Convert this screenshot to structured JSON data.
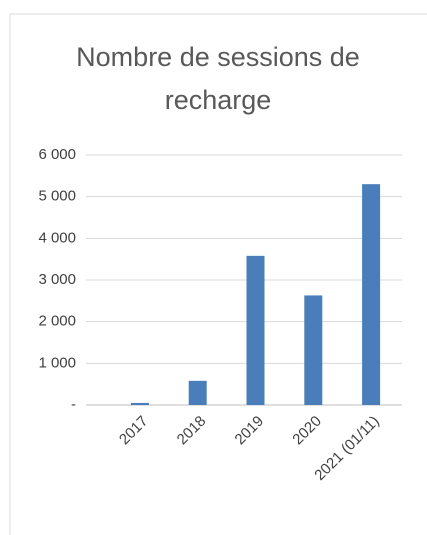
{
  "chart_data": {
    "type": "bar",
    "title": "Nombre de sessions de recharge",
    "categories": [
      "2017",
      "2018",
      "2019",
      "2020",
      "2021 (01/11)"
    ],
    "values": [
      50,
      580,
      3580,
      2630,
      5300
    ],
    "color": "#4a7ebb",
    "ylim": [
      0,
      6000
    ],
    "yticks": [
      {
        "value": 0,
        "label": "-"
      },
      {
        "value": 1000,
        "label": "1 000"
      },
      {
        "value": 2000,
        "label": "2 000"
      },
      {
        "value": 3000,
        "label": "3 000"
      },
      {
        "value": 4000,
        "label": "4 000"
      },
      {
        "value": 5000,
        "label": "5 000"
      },
      {
        "value": 6000,
        "label": "6 000"
      }
    ],
    "grid": true
  }
}
